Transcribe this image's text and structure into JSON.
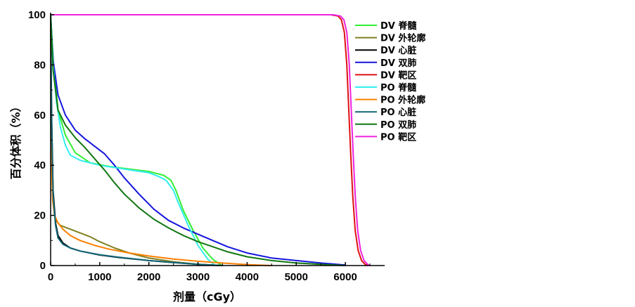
{
  "chart_data": {
    "type": "line",
    "xlabel": "剂量（cGy）",
    "ylabel": "百分体积（%）",
    "xlim": [
      0,
      6800
    ],
    "ylim": [
      0,
      100
    ],
    "x_ticks": [
      0,
      1000,
      2000,
      3000,
      4000,
      5000,
      6000
    ],
    "y_ticks": [
      0,
      20,
      40,
      60,
      80,
      100
    ],
    "grid": false,
    "legend_position": "top-right",
    "series": [
      {
        "name": "DV 脊髓",
        "color": "#33ee33",
        "x": [
          0,
          60,
          150,
          300,
          500,
          800,
          1200,
          1600,
          2000,
          2300,
          2450,
          2550,
          2700,
          2900,
          3100,
          3300,
          3450,
          3500
        ],
        "y": [
          100,
          80,
          62,
          52,
          45,
          41,
          39.5,
          38.5,
          37.5,
          36,
          34,
          30,
          22,
          14,
          7,
          2.5,
          0.5,
          0
        ]
      },
      {
        "name": "DV 外轮廓",
        "color": "#808020",
        "x": [
          0,
          20,
          50,
          100,
          200,
          400,
          600,
          800,
          1000,
          1300,
          1600,
          2000,
          2500,
          3000,
          3400
        ],
        "y": [
          100,
          45,
          25,
          18,
          16,
          14.5,
          13,
          11.5,
          9.5,
          7,
          5,
          3,
          1.5,
          0.5,
          0
        ]
      },
      {
        "name": "DV 心脏",
        "color": "#000000",
        "x": [
          0,
          20,
          50,
          100,
          150,
          250,
          400,
          600,
          800,
          1000,
          1400,
          2000,
          2500,
          3000,
          3500
        ],
        "y": [
          100,
          60,
          30,
          17,
          12,
          9,
          7,
          5.8,
          5,
          4.2,
          3.2,
          2,
          1.2,
          0.5,
          0
        ]
      },
      {
        "name": "DV 双肺",
        "color": "#1515dd",
        "x": [
          0,
          50,
          150,
          300,
          500,
          700,
          900,
          1100,
          1300,
          1500,
          1800,
          2100,
          2400,
          2700,
          3000,
          3300,
          3600,
          4000,
          4500,
          5000,
          5500,
          6000
        ],
        "y": [
          100,
          82,
          68,
          60,
          54,
          50.5,
          47.5,
          44.5,
          40,
          35,
          28.5,
          22.5,
          18,
          15,
          12.5,
          10,
          7.5,
          5,
          3,
          2,
          1,
          0.2
        ]
      },
      {
        "name": "DV 靶区",
        "color": "#dd1111",
        "x": [
          0,
          2000,
          4000,
          5700,
          5850,
          5920,
          5980,
          6030,
          6070,
          6110,
          6150,
          6200,
          6260,
          6330,
          6400,
          6450
        ],
        "y": [
          100,
          100,
          100,
          100,
          99.5,
          98,
          93,
          80,
          62,
          44,
          28,
          14,
          6,
          2,
          0.5,
          0
        ]
      },
      {
        "name": "PO 脊髓",
        "color": "#33eeee",
        "x": [
          0,
          50,
          120,
          200,
          300,
          400,
          600,
          1000,
          1500,
          2000,
          2200,
          2350,
          2500,
          2600,
          2800,
          3000,
          3200,
          3350
        ],
        "y": [
          100,
          80,
          65,
          55,
          48,
          44,
          42,
          40,
          38.5,
          37,
          35.5,
          34,
          30,
          25,
          16,
          8,
          2.5,
          0
        ]
      },
      {
        "name": "PO 外轮廓",
        "color": "#ff8000",
        "x": [
          0,
          15,
          40,
          80,
          150,
          250,
          400,
          600,
          900,
          1200,
          1600,
          2000,
          2500,
          3000,
          3500,
          4000,
          4500
        ],
        "y": [
          100,
          45,
          26,
          20,
          17,
          14.5,
          12,
          10,
          8,
          6.5,
          5,
          3.8,
          2.6,
          1.7,
          1,
          0.4,
          0
        ]
      },
      {
        "name": "PO 心脏",
        "color": "#116677",
        "x": [
          0,
          20,
          50,
          100,
          150,
          250,
          400,
          600,
          800,
          1000,
          1400,
          2000,
          2500,
          3000,
          3500
        ],
        "y": [
          100,
          58,
          28,
          16,
          11,
          8.5,
          7,
          5.8,
          5,
          4.3,
          3.3,
          2,
          1.2,
          0.5,
          0
        ]
      },
      {
        "name": "PO 双肺",
        "color": "#117711",
        "x": [
          0,
          50,
          150,
          300,
          500,
          700,
          900,
          1100,
          1300,
          1500,
          1800,
          2100,
          2400,
          2700,
          3000,
          3300,
          3600,
          4000,
          4500,
          5000,
          5500,
          6000
        ],
        "y": [
          100,
          78,
          62,
          56,
          51,
          47,
          42.5,
          38,
          33,
          28.5,
          23,
          18.5,
          15,
          12,
          9.5,
          7.5,
          5.5,
          3.5,
          2,
          1,
          0.5,
          0
        ]
      },
      {
        "name": "PO 靶区",
        "color": "#ee22dd",
        "x": [
          0,
          2000,
          4000,
          5750,
          5900,
          5970,
          6030,
          6080,
          6120,
          6160,
          6200,
          6250,
          6310,
          6380,
          6450,
          6500
        ],
        "y": [
          100,
          100,
          100,
          100,
          99.5,
          98,
          93,
          80,
          62,
          44,
          28,
          14,
          6,
          2,
          0.5,
          0
        ]
      }
    ]
  }
}
